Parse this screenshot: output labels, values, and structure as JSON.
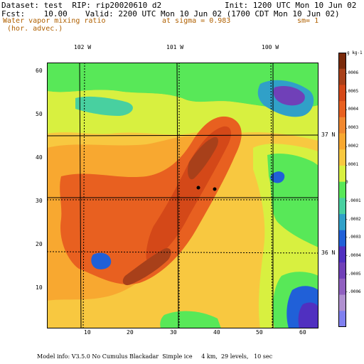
{
  "header": {
    "dataset_line": "Dataset: test  RIP: rip20020610 d2",
    "init_line": "Init: 1200 UTC Mon 10 Jun 02",
    "fcst_line": "Fcst:    10.00",
    "valid_line": "Valid: 2200 UTC Mon 10 Jun 02 (1700 CDT Mon 10 Jun 02)",
    "field_line1": "Water vapor mixing ratio",
    "field_line2": " (hor. advec.)",
    "sigma_line": "at sigma = 0.983",
    "sm_line": "sm= 1"
  },
  "map": {
    "lon_labels": [
      "102 W",
      "101 W",
      "100 W"
    ],
    "lat_labels": [
      "37 N",
      "36 N"
    ],
    "y_ticks": [
      "60",
      "50",
      "40",
      "30",
      "20",
      "10"
    ],
    "x_ticks": [
      "10",
      "20",
      "30",
      "40",
      "50",
      "60"
    ],
    "x_range": [
      1,
      64
    ],
    "y_range": [
      1,
      64
    ],
    "markers": [
      {
        "x": 35.3,
        "y": 33.0,
        "kind": "dot"
      },
      {
        "x": 39.0,
        "y": 32.6,
        "kind": "dot"
      }
    ]
  },
  "colorbar": {
    "unit": "g kg-1",
    "ticks": [
      ".0006",
      ".0005",
      ".0004",
      ".0003",
      ".0002",
      ".0001",
      "0",
      "-.0001",
      "-.0002",
      "-.0003",
      "-.0004",
      "-.0005",
      "-.0006"
    ],
    "colors": [
      "#7a2a0a",
      "#a8401a",
      "#d44818",
      "#e86020",
      "#f08830",
      "#f8a830",
      "#f8c840",
      "#d8f040",
      "#58e858",
      "#48d0a0",
      "#30a0c8",
      "#2060d8",
      "#5030c0",
      "#7040b8",
      "#9060c0",
      "#b090d0",
      "#8080f0"
    ]
  },
  "footer": {
    "model_info": "Model info: V3.5.0 No Cumulus Blackadar  Simple ice     4 km,  29 levels,   10 sec"
  }
}
